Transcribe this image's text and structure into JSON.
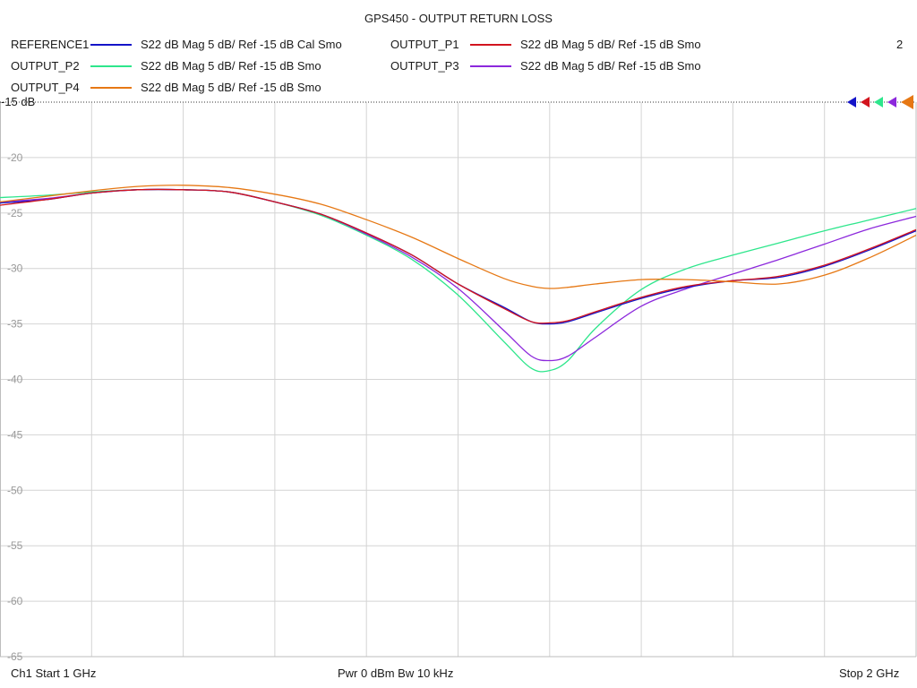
{
  "chart_data": {
    "type": "line",
    "title": "GPS450 - OUTPUT RETURN LOSS",
    "xlabel": "",
    "ylabel": "",
    "x_start_ghz": 1,
    "x_stop_ghz": 2,
    "ylim": [
      -65,
      -15
    ],
    "y_ticks": [
      -15,
      -20,
      -25,
      -30,
      -35,
      -40,
      -45,
      -50,
      -55,
      -60,
      -65
    ],
    "y_tick_labels": [
      "-15 dB",
      "-20",
      "-25",
      "-30",
      "-35",
      "-40",
      "-45",
      "-50",
      "-55",
      "-60",
      "-65"
    ],
    "grid": true,
    "legend_position": "top",
    "series": [
      {
        "name": "REFERENCE1",
        "description": "S22  dB Mag  5 dB/ Ref -15 dB  Cal Smo",
        "color": "#1414c8",
        "x": [
          1.0,
          1.05,
          1.1,
          1.15,
          1.2,
          1.25,
          1.3,
          1.35,
          1.4,
          1.45,
          1.5,
          1.55,
          1.58,
          1.6,
          1.62,
          1.65,
          1.7,
          1.75,
          1.8,
          1.85,
          1.9,
          1.95,
          2.0
        ],
        "y": [
          -24.1,
          -23.8,
          -23.2,
          -22.9,
          -22.9,
          -23.1,
          -24.0,
          -25.1,
          -26.8,
          -28.8,
          -31.4,
          -33.5,
          -34.8,
          -35.0,
          -34.8,
          -34.0,
          -32.7,
          -31.7,
          -31.1,
          -30.8,
          -29.8,
          -28.3,
          -26.6
        ]
      },
      {
        "name": "OUTPUT_P1",
        "description": "S22  dB Mag  5 dB/ Ref -15 dB  Smo",
        "color": "#d2141e",
        "x": [
          1.0,
          1.05,
          1.1,
          1.15,
          1.2,
          1.25,
          1.3,
          1.35,
          1.4,
          1.45,
          1.5,
          1.55,
          1.58,
          1.6,
          1.62,
          1.65,
          1.7,
          1.75,
          1.8,
          1.85,
          1.9,
          1.95,
          2.0
        ],
        "y": [
          -24.3,
          -23.8,
          -23.2,
          -22.9,
          -22.9,
          -23.1,
          -24.0,
          -25.1,
          -26.8,
          -28.8,
          -31.4,
          -33.6,
          -34.8,
          -34.9,
          -34.7,
          -33.9,
          -32.6,
          -31.6,
          -31.1,
          -30.7,
          -29.7,
          -28.2,
          -26.5
        ]
      },
      {
        "name": "OUTPUT_P2",
        "description": "S22  dB Mag  5 dB/ Ref -15 dB  Smo",
        "color": "#2ee68c",
        "x": [
          1.0,
          1.05,
          1.1,
          1.15,
          1.2,
          1.25,
          1.3,
          1.35,
          1.4,
          1.45,
          1.5,
          1.55,
          1.58,
          1.6,
          1.62,
          1.65,
          1.7,
          1.75,
          1.8,
          1.85,
          1.9,
          1.95,
          2.0
        ],
        "y": [
          -23.6,
          -23.4,
          -23.1,
          -22.9,
          -22.9,
          -23.1,
          -24.0,
          -25.2,
          -27.0,
          -29.2,
          -32.4,
          -36.6,
          -39.0,
          -39.2,
          -38.3,
          -35.4,
          -31.9,
          -30.0,
          -28.8,
          -27.7,
          -26.6,
          -25.6,
          -24.6
        ]
      },
      {
        "name": "OUTPUT_P3",
        "description": "S22  dB Mag  5 dB/ Ref -15 dB  Smo",
        "color": "#8c28dc",
        "x": [
          1.0,
          1.05,
          1.1,
          1.15,
          1.2,
          1.25,
          1.3,
          1.35,
          1.4,
          1.45,
          1.5,
          1.55,
          1.58,
          1.6,
          1.62,
          1.65,
          1.7,
          1.75,
          1.8,
          1.85,
          1.9,
          1.95,
          2.0
        ],
        "y": [
          -24.0,
          -23.7,
          -23.2,
          -22.9,
          -22.9,
          -23.1,
          -24.0,
          -25.1,
          -26.9,
          -29.0,
          -31.8,
          -35.6,
          -37.9,
          -38.3,
          -37.9,
          -36.2,
          -33.4,
          -31.8,
          -30.5,
          -29.2,
          -27.8,
          -26.4,
          -25.3
        ]
      },
      {
        "name": "OUTPUT_P4",
        "description": "S22  dB Mag  5 dB/ Ref -15 dB  Smo",
        "color": "#e67814",
        "x": [
          1.0,
          1.05,
          1.1,
          1.15,
          1.2,
          1.25,
          1.3,
          1.35,
          1.4,
          1.45,
          1.5,
          1.55,
          1.58,
          1.6,
          1.62,
          1.65,
          1.7,
          1.75,
          1.8,
          1.85,
          1.9,
          1.95,
          2.0
        ],
        "y": [
          -24.0,
          -23.5,
          -23.0,
          -22.6,
          -22.5,
          -22.7,
          -23.3,
          -24.2,
          -25.6,
          -27.2,
          -29.1,
          -30.9,
          -31.6,
          -31.8,
          -31.7,
          -31.4,
          -31.0,
          -31.0,
          -31.2,
          -31.4,
          -30.6,
          -29.0,
          -27.0
        ]
      }
    ],
    "markers": {
      "count": 5,
      "colors": [
        "#1414c8",
        "#d2141e",
        "#2ee68c",
        "#8c28dc",
        "#e67814"
      ]
    }
  },
  "channel_number": "2",
  "footer": {
    "start": "Ch1  Start  1 GHz",
    "center": "Pwr  0 dBm  Bw  10 kHz",
    "stop": "Stop  2 GHz"
  }
}
